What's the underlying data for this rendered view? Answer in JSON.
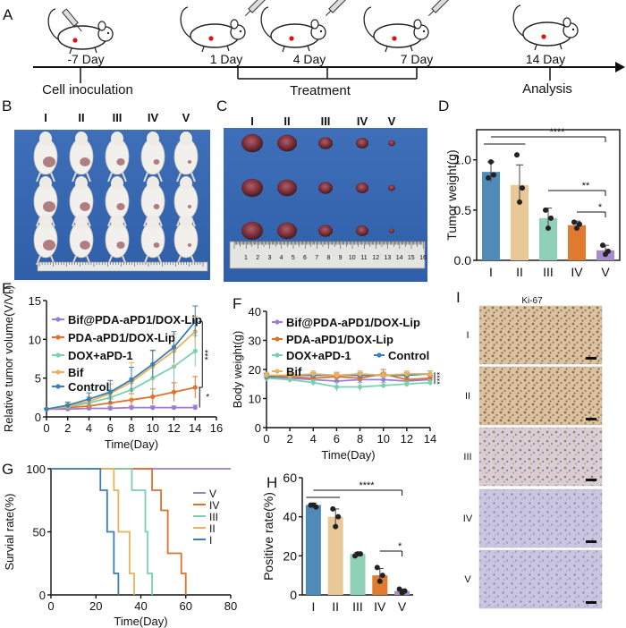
{
  "colors": {
    "g1": "#4f8ab8",
    "g2": "#e8c896",
    "g3": "#8ed1b8",
    "g4": "#e07a2e",
    "g5": "#a58bd0",
    "line1": "#9b7dd3",
    "line2": "#e0712a",
    "line3": "#79d1b0",
    "line4": "#e7b35c",
    "line5": "#3b7fb8"
  },
  "panel_letters": [
    "A",
    "B",
    "C",
    "D",
    "E",
    "F",
    "G",
    "H",
    "I"
  ],
  "timeline": {
    "days": [
      "-7 Day",
      "1 Day",
      "4 Day",
      "7 Day",
      "14 Day"
    ],
    "events": [
      "Cell inoculation",
      "Treatment",
      "Analysis"
    ]
  },
  "group_roman": [
    "I",
    "II",
    "III",
    "IV",
    "V"
  ],
  "ki67_label": "Ki-67",
  "ruler_numbers": [
    "1",
    "2",
    "3",
    "4",
    "5",
    "6",
    "7",
    "8",
    "9",
    "10",
    "11",
    "12",
    "13",
    "14",
    "15",
    "16"
  ],
  "chart_data": [
    {
      "id": "D",
      "type": "bar",
      "ylabel": "Tumor weight(g)",
      "categories": [
        "I",
        "II",
        "III",
        "IV",
        "V"
      ],
      "values": [
        0.88,
        0.75,
        0.42,
        0.35,
        0.1
      ],
      "errors": [
        0.1,
        0.2,
        0.1,
        0.04,
        0.05
      ],
      "points": [
        [
          0.82,
          0.98,
          0.85
        ],
        [
          1.05,
          0.58,
          0.72
        ],
        [
          0.5,
          0.32,
          0.42
        ],
        [
          0.38,
          0.32,
          0.36
        ],
        [
          0.15,
          0.06,
          0.09
        ]
      ],
      "ylim": [
        0,
        1.3
      ],
      "yticks": [
        0.0,
        0.5,
        1.0
      ],
      "ytick_labels": [
        "0.0",
        "0.5",
        "1.0"
      ],
      "significance": [
        {
          "groups": [
            0,
            4
          ],
          "label": "****"
        },
        {
          "groups": [
            2,
            4
          ],
          "label": "**"
        },
        {
          "groups": [
            3,
            4
          ],
          "label": "*"
        }
      ]
    },
    {
      "id": "E",
      "type": "line",
      "xlabel": "Time(Day)",
      "ylabel": "Relative tumor volume(V/V₀)",
      "x": [
        0,
        2,
        4,
        6,
        8,
        10,
        12,
        14
      ],
      "xlim": [
        0,
        16
      ],
      "ylim": [
        0,
        15
      ],
      "xticks": [
        0,
        2,
        4,
        6,
        8,
        10,
        12,
        14,
        16
      ],
      "yticks": [
        0,
        5,
        10,
        15
      ],
      "series": [
        {
          "name": "Bif@PDA-aPD1/DOX-Lip",
          "values": [
            1.0,
            1.0,
            1.1,
            1.1,
            1.2,
            1.2,
            1.2,
            1.2
          ],
          "err": [
            0.05,
            0.1,
            0.1,
            0.2,
            0.2,
            0.2,
            0.2,
            0.3
          ]
        },
        {
          "name": "PDA-aPD1/DOX-Lip",
          "values": [
            1.0,
            1.2,
            1.4,
            1.8,
            2.2,
            2.6,
            3.2,
            3.8
          ],
          "err": [
            0.1,
            0.2,
            0.3,
            0.5,
            0.8,
            1.0,
            1.2,
            1.4
          ]
        },
        {
          "name": "DOX+aPD-1",
          "values": [
            1.0,
            1.3,
            1.8,
            2.5,
            3.5,
            5.0,
            6.5,
            8.5
          ],
          "err": [
            0.1,
            0.3,
            0.6,
            1.0,
            1.5,
            1.8,
            2.0,
            2.0
          ]
        },
        {
          "name": "Bif",
          "values": [
            1.0,
            1.4,
            2.0,
            3.0,
            4.5,
            6.5,
            8.5,
            11.0
          ],
          "err": [
            0.1,
            0.3,
            0.6,
            1.2,
            2.5,
            2.0,
            2.2,
            2.0
          ]
        },
        {
          "name": "Control",
          "values": [
            1.0,
            1.5,
            2.3,
            3.2,
            4.8,
            6.8,
            9.0,
            12.3
          ],
          "err": [
            0.1,
            0.4,
            0.8,
            1.5,
            1.6,
            1.8,
            2.0,
            2.0
          ]
        }
      ],
      "significance": [
        {
          "label": "***"
        },
        {
          "label": "*"
        }
      ]
    },
    {
      "id": "F",
      "type": "line",
      "xlabel": "Time(Day)",
      "ylabel": "Body weight(g)",
      "x": [
        0,
        2,
        4,
        6,
        8,
        10,
        12,
        14
      ],
      "xlim": [
        0,
        14
      ],
      "ylim": [
        0,
        40
      ],
      "xticks": [
        0,
        2,
        4,
        6,
        8,
        10,
        12,
        14
      ],
      "yticks": [
        0,
        10,
        20,
        30,
        40
      ],
      "series": [
        {
          "name": "Bif@PDA-aPD1/DOX-Lip",
          "values": [
            17.5,
            17.0,
            16.5,
            16.0,
            16.5,
            16.5,
            16.0,
            16.5
          ],
          "err": [
            1,
            1,
            1,
            1,
            1,
            1,
            1,
            1
          ]
        },
        {
          "name": "PDA-aPD1/DOX-Lip",
          "values": [
            17.5,
            17.5,
            17.0,
            17.5,
            17.0,
            18.5,
            16.5,
            17.0
          ],
          "err": [
            1,
            1,
            1,
            1,
            1,
            1.5,
            1,
            1
          ]
        },
        {
          "name": "DOX+aPD-1",
          "values": [
            17.0,
            16.5,
            15.5,
            14.0,
            14.0,
            14.5,
            15.0,
            15.5
          ],
          "err": [
            1,
            1,
            1,
            1.5,
            1.5,
            1,
            1,
            1
          ]
        },
        {
          "name": "Control",
          "values": [
            17.5,
            18.0,
            18.0,
            18.0,
            18.0,
            18.0,
            18.0,
            18.5
          ],
          "err": [
            1,
            1,
            1,
            1,
            1,
            1,
            1,
            1
          ]
        },
        {
          "name": "Bif",
          "values": [
            18.0,
            18.0,
            18.5,
            18.0,
            18.5,
            18.0,
            18.5,
            18.5
          ],
          "err": [
            1,
            1,
            1,
            1,
            1,
            1,
            1,
            1
          ]
        }
      ],
      "significance": [
        {
          "label": "****"
        }
      ]
    },
    {
      "id": "G",
      "type": "line",
      "step": true,
      "xlabel": "Time(Day)",
      "ylabel": "Survial rate(%)",
      "xlim": [
        0,
        80
      ],
      "ylim": [
        0,
        100
      ],
      "xticks": [
        0,
        20,
        40,
        60,
        80
      ],
      "yticks": [
        0,
        50,
        100
      ],
      "legend": [
        "V",
        "IV",
        "III",
        "II",
        "I"
      ],
      "series": [
        {
          "name": "V",
          "x": [
            0,
            80
          ],
          "values": [
            100,
            100
          ]
        },
        {
          "name": "IV",
          "x": [
            0,
            45,
            45,
            49,
            49,
            52,
            52,
            58,
            58,
            60,
            60
          ],
          "values": [
            100,
            100,
            83,
            83,
            67,
            67,
            33,
            33,
            17,
            17,
            0
          ]
        },
        {
          "name": "III",
          "x": [
            0,
            36,
            36,
            42,
            42,
            43,
            43,
            45,
            45
          ],
          "values": [
            100,
            100,
            83,
            83,
            50,
            50,
            17,
            17,
            0
          ]
        },
        {
          "name": "II",
          "x": [
            0,
            28,
            28,
            30,
            30,
            35,
            35,
            37,
            37
          ],
          "values": [
            100,
            100,
            83,
            83,
            50,
            50,
            17,
            17,
            0
          ]
        },
        {
          "name": "I",
          "x": [
            0,
            22,
            22,
            25,
            25,
            28,
            28,
            30,
            30
          ],
          "values": [
            100,
            100,
            83,
            83,
            50,
            50,
            17,
            17,
            0
          ]
        }
      ]
    },
    {
      "id": "H",
      "type": "bar",
      "ylabel": "Positive rate(%)",
      "categories": [
        "I",
        "II",
        "III",
        "IV",
        "V"
      ],
      "values": [
        46,
        40,
        21,
        10,
        2
      ],
      "errors": [
        1.0,
        4.0,
        0.8,
        3.5,
        1.0
      ],
      "points": [
        [
          46,
          46,
          45
        ],
        [
          44,
          35,
          40
        ],
        [
          20,
          21,
          21
        ],
        [
          14,
          7,
          10
        ],
        [
          3,
          1,
          2
        ]
      ],
      "ylim": [
        0,
        60
      ],
      "yticks": [
        0,
        20,
        40,
        60
      ],
      "ytick_labels": [
        "0",
        "20",
        "40",
        "60"
      ],
      "significance": [
        {
          "groups": [
            0,
            4
          ],
          "label": "****"
        },
        {
          "groups": [
            3,
            4
          ],
          "label": "*"
        }
      ]
    }
  ]
}
